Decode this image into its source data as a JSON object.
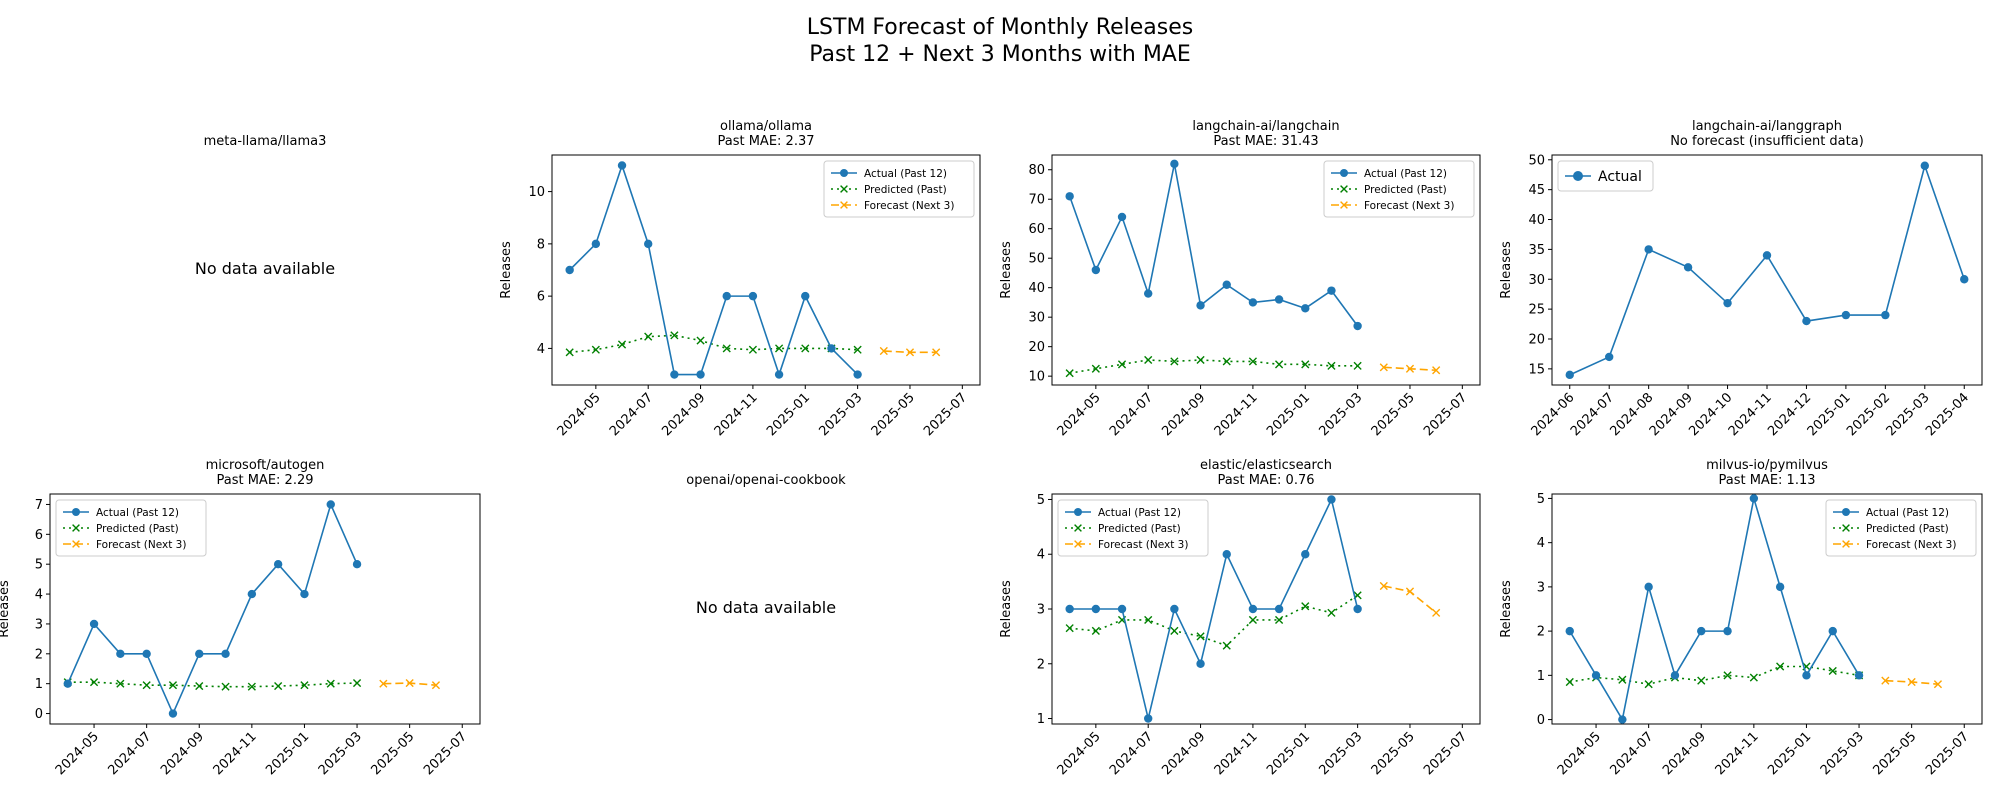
{
  "figure": {
    "title_line1": "LSTM Forecast of Monthly Releases",
    "title_line2": "Past 12 + Next 3 Months with MAE"
  },
  "chart_data": [
    {
      "type": "text",
      "title": "meta-llama/llama3",
      "subtitle": "",
      "message": "No data available"
    },
    {
      "type": "line",
      "title": "ollama/ollama",
      "subtitle": "Past MAE: 2.37",
      "ylabel": "Releases",
      "xlim": [
        "2024-04",
        "2025-07"
      ],
      "ylim": [
        2.6,
        11.4
      ],
      "yticks": [
        4,
        6,
        8,
        10
      ],
      "xticks": [
        "2024-05",
        "2024-07",
        "2024-09",
        "2024-11",
        "2025-01",
        "2025-03",
        "2025-05",
        "2025-07"
      ],
      "legend": "top-right",
      "series": [
        {
          "name": "Actual (Past 12)",
          "style": "actual",
          "x": [
            "2024-04",
            "2024-05",
            "2024-06",
            "2024-07",
            "2024-08",
            "2024-09",
            "2024-10",
            "2024-11",
            "2024-12",
            "2025-01",
            "2025-02",
            "2025-03"
          ],
          "values": [
            7,
            8,
            11,
            8,
            3,
            3,
            6,
            6,
            3,
            6,
            4,
            3
          ]
        },
        {
          "name": "Predicted (Past)",
          "style": "predicted",
          "x": [
            "2024-04",
            "2024-05",
            "2024-06",
            "2024-07",
            "2024-08",
            "2024-09",
            "2024-10",
            "2024-11",
            "2024-12",
            "2025-01",
            "2025-02",
            "2025-03"
          ],
          "values": [
            3.85,
            3.95,
            4.15,
            4.45,
            4.5,
            4.3,
            4.0,
            3.95,
            4.0,
            4.0,
            4.0,
            3.95
          ]
        },
        {
          "name": "Forecast (Next 3)",
          "style": "forecast",
          "x": [
            "2025-04",
            "2025-05",
            "2025-06"
          ],
          "values": [
            3.9,
            3.85,
            3.85
          ]
        }
      ]
    },
    {
      "type": "line",
      "title": "langchain-ai/langchain",
      "subtitle": "Past MAE: 31.43",
      "ylabel": "Releases",
      "xlim": [
        "2024-04",
        "2025-07"
      ],
      "ylim": [
        7,
        85
      ],
      "yticks": [
        10,
        20,
        30,
        40,
        50,
        60,
        70,
        80
      ],
      "xticks": [
        "2024-05",
        "2024-07",
        "2024-09",
        "2024-11",
        "2025-01",
        "2025-03",
        "2025-05",
        "2025-07"
      ],
      "legend": "top-right",
      "series": [
        {
          "name": "Actual (Past 12)",
          "style": "actual",
          "x": [
            "2024-04",
            "2024-05",
            "2024-06",
            "2024-07",
            "2024-08",
            "2024-09",
            "2024-10",
            "2024-11",
            "2024-12",
            "2025-01",
            "2025-02",
            "2025-03"
          ],
          "values": [
            71,
            46,
            64,
            38,
            82,
            34,
            41,
            35,
            36,
            33,
            39,
            27
          ]
        },
        {
          "name": "Predicted (Past)",
          "style": "predicted",
          "x": [
            "2024-04",
            "2024-05",
            "2024-06",
            "2024-07",
            "2024-08",
            "2024-09",
            "2024-10",
            "2024-11",
            "2024-12",
            "2025-01",
            "2025-02",
            "2025-03"
          ],
          "values": [
            11,
            12.5,
            14,
            15.5,
            15,
            15.5,
            15,
            15,
            14,
            14,
            13.5,
            13.5
          ]
        },
        {
          "name": "Forecast (Next 3)",
          "style": "forecast",
          "x": [
            "2025-04",
            "2025-05",
            "2025-06"
          ],
          "values": [
            13,
            12.5,
            12
          ]
        }
      ]
    },
    {
      "type": "line",
      "title": "langchain-ai/langgraph",
      "subtitle": "No forecast (insufficient data)",
      "ylabel": "Releases",
      "xlim": [
        "2024-06",
        "2025-04"
      ],
      "ylim": [
        12.3,
        50.8
      ],
      "yticks": [
        15,
        20,
        25,
        30,
        35,
        40,
        45,
        50
      ],
      "xticks": [
        "2024-06",
        "2024-07",
        "2024-08",
        "2024-09",
        "2024-10",
        "2024-11",
        "2024-12",
        "2025-01",
        "2025-02",
        "2025-03",
        "2025-04"
      ],
      "legend": "top-left",
      "series": [
        {
          "name": "Actual",
          "style": "actual",
          "x": [
            "2024-06",
            "2024-07",
            "2024-08",
            "2024-09",
            "2024-10",
            "2024-11",
            "2024-12",
            "2025-01",
            "2025-02",
            "2025-03",
            "2025-04"
          ],
          "values": [
            14,
            17,
            35,
            32,
            26,
            34,
            23,
            24,
            24,
            49,
            30
          ]
        }
      ]
    },
    {
      "type": "line",
      "title": "microsoft/autogen",
      "subtitle": "Past MAE: 2.29",
      "ylabel": "Releases",
      "xlim": [
        "2024-04",
        "2025-07"
      ],
      "ylim": [
        -0.35,
        7.35
      ],
      "yticks": [
        0,
        1,
        2,
        3,
        4,
        5,
        6,
        7
      ],
      "xticks": [
        "2024-05",
        "2024-07",
        "2024-09",
        "2024-11",
        "2025-01",
        "2025-03",
        "2025-05",
        "2025-07"
      ],
      "legend": "top-left",
      "series": [
        {
          "name": "Actual (Past 12)",
          "style": "actual",
          "x": [
            "2024-04",
            "2024-05",
            "2024-06",
            "2024-07",
            "2024-08",
            "2024-09",
            "2024-10",
            "2024-11",
            "2024-12",
            "2025-01",
            "2025-02",
            "2025-03"
          ],
          "values": [
            1,
            3,
            2,
            2,
            0,
            2,
            2,
            4,
            5,
            4,
            7,
            5
          ]
        },
        {
          "name": "Predicted (Past)",
          "style": "predicted",
          "x": [
            "2024-04",
            "2024-05",
            "2024-06",
            "2024-07",
            "2024-08",
            "2024-09",
            "2024-10",
            "2024-11",
            "2024-12",
            "2025-01",
            "2025-02",
            "2025-03"
          ],
          "values": [
            1.05,
            1.05,
            1.0,
            0.95,
            0.95,
            0.92,
            0.9,
            0.9,
            0.92,
            0.95,
            1.0,
            1.02
          ]
        },
        {
          "name": "Forecast (Next 3)",
          "style": "forecast",
          "x": [
            "2025-04",
            "2025-05",
            "2025-06"
          ],
          "values": [
            1.0,
            1.02,
            0.95
          ]
        }
      ]
    },
    {
      "type": "text",
      "title": "openai/openai-cookbook",
      "subtitle": "",
      "message": "No data available"
    },
    {
      "type": "line",
      "title": "elastic/elasticsearch",
      "subtitle": "Past MAE: 0.76",
      "ylabel": "Releases",
      "xlim": [
        "2024-04",
        "2025-07"
      ],
      "ylim": [
        0.9,
        5.1
      ],
      "yticks": [
        1,
        2,
        3,
        4,
        5
      ],
      "xticks": [
        "2024-05",
        "2024-07",
        "2024-09",
        "2024-11",
        "2025-01",
        "2025-03",
        "2025-05",
        "2025-07"
      ],
      "legend": "top-left",
      "series": [
        {
          "name": "Actual (Past 12)",
          "style": "actual",
          "x": [
            "2024-04",
            "2024-05",
            "2024-06",
            "2024-07",
            "2024-08",
            "2024-09",
            "2024-10",
            "2024-11",
            "2024-12",
            "2025-01",
            "2025-02",
            "2025-03"
          ],
          "values": [
            3,
            3,
            3,
            1,
            3,
            2,
            4,
            3,
            3,
            4,
            5,
            3
          ]
        },
        {
          "name": "Predicted (Past)",
          "style": "predicted",
          "x": [
            "2024-04",
            "2024-05",
            "2024-06",
            "2024-07",
            "2024-08",
            "2024-09",
            "2024-10",
            "2024-11",
            "2024-12",
            "2025-01",
            "2025-02",
            "2025-03"
          ],
          "values": [
            2.65,
            2.6,
            2.8,
            2.8,
            2.6,
            2.5,
            2.33,
            2.8,
            2.8,
            3.05,
            2.93,
            3.25
          ]
        },
        {
          "name": "Forecast (Next 3)",
          "style": "forecast",
          "x": [
            "2025-04",
            "2025-05",
            "2025-06"
          ],
          "values": [
            3.42,
            3.32,
            2.93
          ]
        }
      ]
    },
    {
      "type": "line",
      "title": "milvus-io/pymilvus",
      "subtitle": "Past MAE: 1.13",
      "ylabel": "Releases",
      "xlim": [
        "2024-04",
        "2025-07"
      ],
      "ylim": [
        -0.1,
        5.1
      ],
      "yticks": [
        0,
        1,
        2,
        3,
        4,
        5
      ],
      "xticks": [
        "2024-05",
        "2024-07",
        "2024-09",
        "2024-11",
        "2025-01",
        "2025-03",
        "2025-05",
        "2025-07"
      ],
      "legend": "top-right",
      "series": [
        {
          "name": "Actual (Past 12)",
          "style": "actual",
          "x": [
            "2024-04",
            "2024-05",
            "2024-06",
            "2024-07",
            "2024-08",
            "2024-09",
            "2024-10",
            "2024-11",
            "2024-12",
            "2025-01",
            "2025-02",
            "2025-03"
          ],
          "values": [
            2,
            1,
            0,
            3,
            1,
            2,
            2,
            5,
            3,
            1,
            2,
            1
          ]
        },
        {
          "name": "Predicted (Past)",
          "style": "predicted",
          "x": [
            "2024-04",
            "2024-05",
            "2024-06",
            "2024-07",
            "2024-08",
            "2024-09",
            "2024-10",
            "2024-11",
            "2024-12",
            "2025-01",
            "2025-02",
            "2025-03"
          ],
          "values": [
            0.85,
            0.95,
            0.9,
            0.8,
            0.95,
            0.88,
            1.0,
            0.95,
            1.2,
            1.2,
            1.1,
            1.0
          ]
        },
        {
          "name": "Forecast (Next 3)",
          "style": "forecast",
          "x": [
            "2025-04",
            "2025-05",
            "2025-06"
          ],
          "values": [
            0.88,
            0.85,
            0.8
          ]
        }
      ]
    }
  ],
  "colors": {
    "actual": "#1f77b4",
    "predicted": "#008000",
    "forecast": "#ffa500",
    "axis": "#000000"
  }
}
